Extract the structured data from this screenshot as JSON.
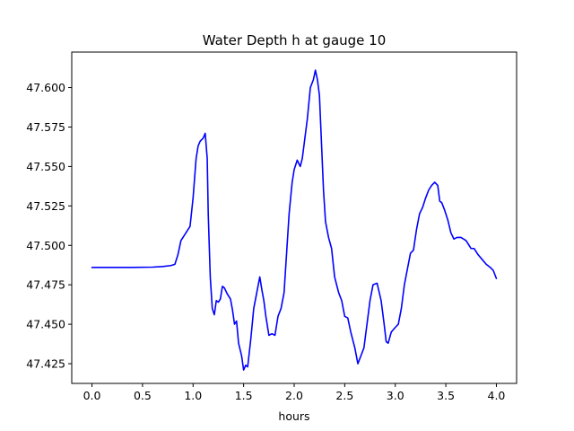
{
  "chart_data": {
    "type": "line",
    "title": "Water Depth h at gauge 10",
    "xlabel": "hours",
    "ylabel": "",
    "xlim": [
      -0.2,
      4.2
    ],
    "ylim": [
      47.4125,
      47.6225
    ],
    "xticks": [
      0.0,
      0.5,
      1.0,
      1.5,
      2.0,
      2.5,
      3.0,
      3.5,
      4.0
    ],
    "xtick_labels": [
      "0.0",
      "0.5",
      "1.0",
      "1.5",
      "2.0",
      "2.5",
      "3.0",
      "3.5",
      "4.0"
    ],
    "yticks": [
      47.425,
      47.45,
      47.475,
      47.5,
      47.525,
      47.55,
      47.575,
      47.6
    ],
    "ytick_labels": [
      "47.425",
      "47.450",
      "47.475",
      "47.500",
      "47.525",
      "47.550",
      "47.575",
      "47.600"
    ],
    "grid": false,
    "series": [
      {
        "color": "#0000ff",
        "x": [
          0.0,
          0.2,
          0.4,
          0.6,
          0.7,
          0.78,
          0.82,
          0.85,
          0.88,
          0.9,
          0.93,
          0.97,
          1.0,
          1.03,
          1.05,
          1.07,
          1.1,
          1.12,
          1.14,
          1.15,
          1.17,
          1.19,
          1.21,
          1.23,
          1.25,
          1.27,
          1.29,
          1.31,
          1.34,
          1.37,
          1.39,
          1.41,
          1.43,
          1.45,
          1.48,
          1.5,
          1.52,
          1.54,
          1.57,
          1.6,
          1.63,
          1.66,
          1.68,
          1.7,
          1.72,
          1.75,
          1.78,
          1.81,
          1.84,
          1.87,
          1.9,
          1.93,
          1.95,
          1.98,
          2.0,
          2.03,
          2.06,
          2.08,
          2.1,
          2.13,
          2.16,
          2.19,
          2.21,
          2.23,
          2.25,
          2.27,
          2.29,
          2.31,
          2.34,
          2.37,
          2.4,
          2.44,
          2.47,
          2.5,
          2.53,
          2.56,
          2.6,
          2.63,
          2.66,
          2.69,
          2.72,
          2.75,
          2.78,
          2.82,
          2.86,
          2.89,
          2.91,
          2.93,
          2.96,
          3.0,
          3.03,
          3.06,
          3.09,
          3.12,
          3.15,
          3.18,
          3.21,
          3.24,
          3.27,
          3.3,
          3.33,
          3.36,
          3.39,
          3.42,
          3.44,
          3.46,
          3.49,
          3.52,
          3.55,
          3.58,
          3.61,
          3.65,
          3.7,
          3.75,
          3.78,
          3.82,
          3.86,
          3.9,
          3.94,
          3.97,
          4.0
        ],
        "y": [
          47.486,
          47.486,
          47.486,
          47.4862,
          47.4866,
          47.4872,
          47.488,
          47.494,
          47.503,
          47.505,
          47.508,
          47.512,
          47.53,
          47.555,
          47.563,
          47.566,
          47.568,
          47.571,
          47.555,
          47.52,
          47.48,
          47.46,
          47.456,
          47.465,
          47.464,
          47.466,
          47.474,
          47.473,
          47.469,
          47.466,
          47.459,
          47.45,
          47.452,
          47.438,
          47.43,
          47.421,
          47.424,
          47.423,
          47.44,
          47.46,
          47.47,
          47.48,
          47.472,
          47.465,
          47.455,
          47.443,
          47.444,
          47.443,
          47.455,
          47.46,
          47.47,
          47.5,
          47.52,
          47.54,
          47.548,
          47.554,
          47.55,
          47.555,
          47.565,
          47.58,
          47.6,
          47.605,
          47.611,
          47.605,
          47.595,
          47.565,
          47.535,
          47.515,
          47.505,
          47.498,
          47.48,
          47.47,
          47.465,
          47.455,
          47.454,
          47.445,
          47.435,
          47.425,
          47.43,
          47.435,
          47.45,
          47.465,
          47.475,
          47.476,
          47.465,
          47.45,
          47.439,
          47.438,
          47.445,
          47.448,
          47.45,
          47.46,
          47.475,
          47.485,
          47.495,
          47.497,
          47.51,
          47.52,
          47.524,
          47.53,
          47.535,
          47.538,
          47.54,
          47.538,
          47.528,
          47.527,
          47.522,
          47.516,
          47.508,
          47.504,
          47.505,
          47.505,
          47.503,
          47.498,
          47.498,
          47.494,
          47.491,
          47.488,
          47.486,
          47.484,
          47.479
        ]
      }
    ]
  }
}
